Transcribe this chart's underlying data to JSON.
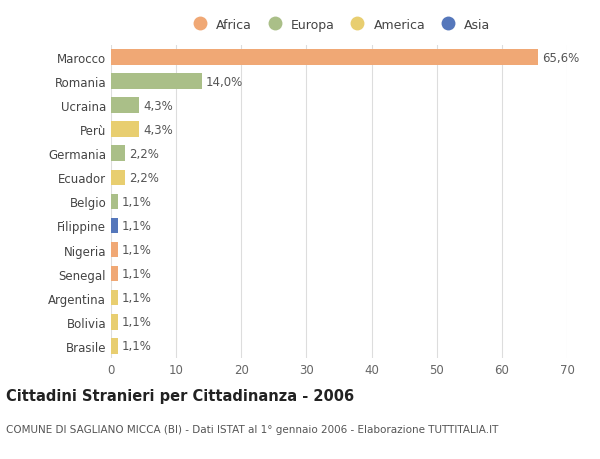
{
  "countries": [
    "Marocco",
    "Romania",
    "Ucraina",
    "Perù",
    "Germania",
    "Ecuador",
    "Belgio",
    "Filippine",
    "Nigeria",
    "Senegal",
    "Argentina",
    "Bolivia",
    "Brasile"
  ],
  "values": [
    65.6,
    14.0,
    4.3,
    4.3,
    2.2,
    2.2,
    1.1,
    1.1,
    1.1,
    1.1,
    1.1,
    1.1,
    1.1
  ],
  "labels": [
    "65,6%",
    "14,0%",
    "4,3%",
    "4,3%",
    "2,2%",
    "2,2%",
    "1,1%",
    "1,1%",
    "1,1%",
    "1,1%",
    "1,1%",
    "1,1%",
    "1,1%"
  ],
  "continents": [
    "Africa",
    "Europa",
    "Europa",
    "America",
    "Europa",
    "America",
    "Europa",
    "Asia",
    "Africa",
    "Africa",
    "America",
    "America",
    "America"
  ],
  "continent_colors": {
    "Africa": "#F0A875",
    "Europa": "#AABF88",
    "America": "#E8CE70",
    "Asia": "#5577BB"
  },
  "legend_order": [
    "Africa",
    "Europa",
    "America",
    "Asia"
  ],
  "xlim": [
    0,
    70
  ],
  "xticks": [
    0,
    10,
    20,
    30,
    40,
    50,
    60,
    70
  ],
  "title": "Cittadini Stranieri per Cittadinanza - 2006",
  "subtitle": "COMUNE DI SAGLIANO MICCA (BI) - Dati ISTAT al 1° gennaio 2006 - Elaborazione TUTTITALIA.IT",
  "background_color": "#FFFFFF",
  "grid_color": "#DDDDDD",
  "bar_height": 0.65,
  "label_fontsize": 8.5,
  "tick_fontsize": 8.5,
  "title_fontsize": 10.5,
  "subtitle_fontsize": 7.5
}
